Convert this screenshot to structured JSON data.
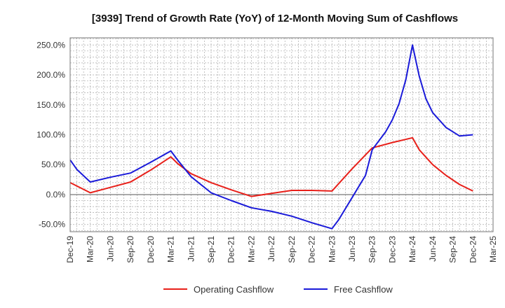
{
  "chart_data": {
    "type": "line",
    "title": "[3939]  Trend of Growth Rate (YoY) of 12-Month Moving Sum of Cashflows",
    "xlabel": "",
    "ylabel": "",
    "ylim": [
      -62,
      262
    ],
    "y_ticks": [
      250,
      200,
      150,
      100,
      50,
      0,
      -50
    ],
    "y_tick_labels": [
      "250.0%",
      "200.0%",
      "150.0%",
      "100.0%",
      "50.0%",
      "0.0%",
      "-50.0%"
    ],
    "x_tick_labels": [
      "Dec-19",
      "Mar-20",
      "Jun-20",
      "Sep-20",
      "Dec-20",
      "Mar-21",
      "Jun-21",
      "Sep-21",
      "Dec-21",
      "Mar-22",
      "Jun-22",
      "Sep-22",
      "Dec-22",
      "Mar-23",
      "Jun-23",
      "Sep-23",
      "Dec-23",
      "Mar-24",
      "Jun-24",
      "Sep-24",
      "Dec-24",
      "Mar-25"
    ],
    "grid": true,
    "legend_position": "bottom",
    "series": [
      {
        "name": "Operating Cashflow",
        "color": "#e8201a",
        "points": [
          [
            0,
            20
          ],
          [
            3,
            3
          ],
          [
            6,
            12
          ],
          [
            9,
            21
          ],
          [
            12,
            41
          ],
          [
            15,
            63
          ],
          [
            16,
            52
          ],
          [
            18,
            35
          ],
          [
            21,
            20
          ],
          [
            24,
            8
          ],
          [
            27,
            -3
          ],
          [
            30,
            2
          ],
          [
            33,
            7
          ],
          [
            36,
            7
          ],
          [
            39,
            6
          ],
          [
            42,
            43
          ],
          [
            45,
            78
          ],
          [
            48,
            87
          ],
          [
            51,
            95
          ],
          [
            52,
            75
          ],
          [
            54,
            50
          ],
          [
            56,
            32
          ],
          [
            58,
            17
          ],
          [
            60,
            6
          ]
        ]
      },
      {
        "name": "Free Cashflow",
        "color": "#1a1ad9",
        "points": [
          [
            0,
            58
          ],
          [
            1,
            42
          ],
          [
            3,
            21
          ],
          [
            6,
            29
          ],
          [
            9,
            36
          ],
          [
            12,
            54
          ],
          [
            15,
            73
          ],
          [
            16,
            58
          ],
          [
            18,
            30
          ],
          [
            21,
            3
          ],
          [
            24,
            -10
          ],
          [
            27,
            -22
          ],
          [
            30,
            -28
          ],
          [
            33,
            -36
          ],
          [
            36,
            -47
          ],
          [
            39,
            -57
          ],
          [
            40,
            -42
          ],
          [
            42,
            -5
          ],
          [
            44,
            32
          ],
          [
            45,
            75
          ],
          [
            47,
            105
          ],
          [
            48,
            125
          ],
          [
            49,
            152
          ],
          [
            50,
            192
          ],
          [
            51,
            250
          ],
          [
            52,
            198
          ],
          [
            53,
            160
          ],
          [
            54,
            137
          ],
          [
            56,
            112
          ],
          [
            58,
            98
          ],
          [
            60,
            100
          ]
        ]
      }
    ]
  }
}
